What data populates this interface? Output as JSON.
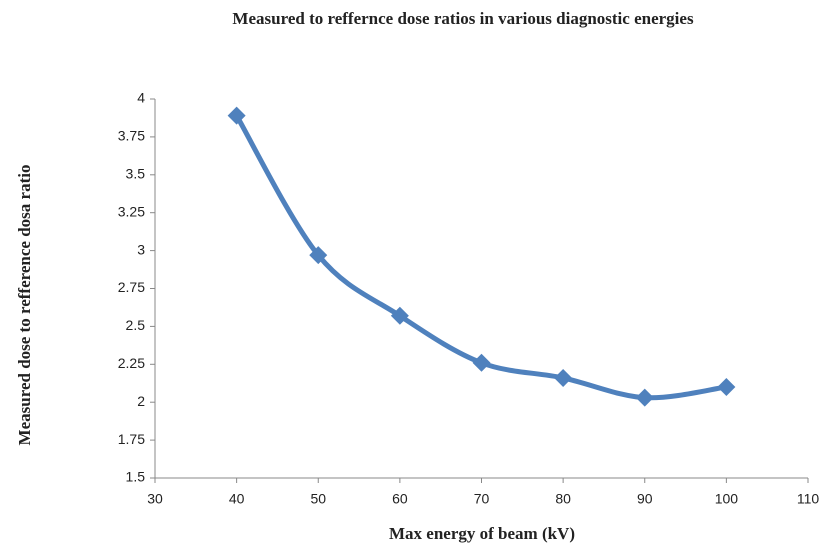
{
  "chart_data": {
    "type": "line",
    "title": "Measured to reffernce dose ratios in various diagnostic energies",
    "x_label": "Max energy of beam (kV)",
    "y_label": "Measured dose to refference dosa ratio",
    "x": [
      40,
      50,
      60,
      70,
      80,
      90,
      100
    ],
    "values": [
      3.89,
      2.97,
      2.57,
      2.26,
      2.16,
      2.03,
      2.1
    ],
    "color": "#4f81bd",
    "smooth": true,
    "marker": "diamond",
    "xlim": [
      30,
      110
    ],
    "xticks": [
      30,
      40,
      50,
      60,
      70,
      80,
      90,
      100,
      110
    ],
    "ylim": [
      1.5,
      4
    ],
    "yticks": [
      1.5,
      1.75,
      2,
      2.25,
      2.5,
      2.75,
      3,
      3.25,
      3.5,
      3.75,
      4
    ],
    "grid": false
  }
}
